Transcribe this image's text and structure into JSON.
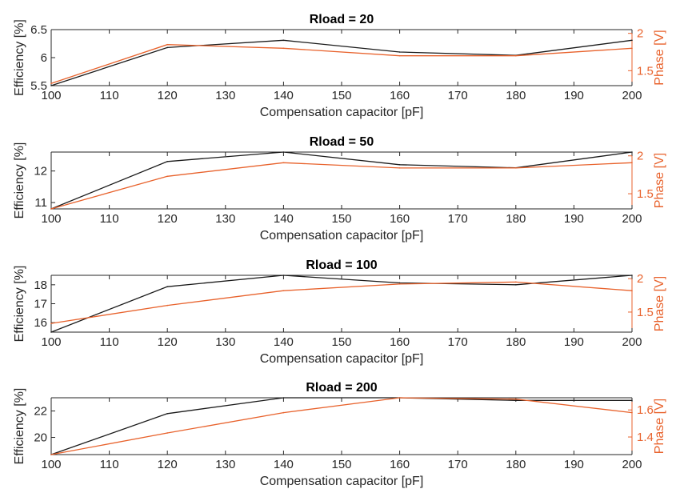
{
  "colors": {
    "efficiency": "#1a1a1a",
    "phase": "#e8622c",
    "axis": "#262626"
  },
  "chart_data": [
    {
      "type": "line",
      "title": "Rload = 20",
      "xlabel": "Compensation capacitor [pF]",
      "ylabel": "Efficiency [%]",
      "ylabel_right": "Phase [V]",
      "x": [
        100,
        120,
        140,
        160,
        180,
        200
      ],
      "xlim": [
        100,
        200
      ],
      "xticks": [
        "100",
        "110",
        "120",
        "130",
        "140",
        "150",
        "160",
        "170",
        "180",
        "190",
        "200"
      ],
      "ylim": [
        5.5,
        6.5
      ],
      "yticks": [
        "5.5",
        "6",
        "6.5"
      ],
      "ylim_right": [
        1.3,
        2.05
      ],
      "yticks_right": [
        "1.5",
        "2"
      ],
      "grid": false,
      "series": [
        {
          "axis": "left",
          "values": [
            5.5,
            6.18,
            6.31,
            6.1,
            6.04,
            6.31
          ]
        },
        {
          "axis": "right",
          "values": [
            1.33,
            1.85,
            1.8,
            1.7,
            1.7,
            1.8
          ]
        }
      ]
    },
    {
      "type": "line",
      "title": "Rload = 50",
      "xlabel": "Compensation capacitor [pF]",
      "ylabel": "Efficiency [%]",
      "ylabel_right": "Phase [V]",
      "x": [
        100,
        120,
        140,
        160,
        180,
        200
      ],
      "xlim": [
        100,
        200
      ],
      "xticks": [
        "100",
        "110",
        "120",
        "130",
        "140",
        "150",
        "160",
        "170",
        "180",
        "190",
        "200"
      ],
      "ylim": [
        10.8,
        12.6
      ],
      "yticks": [
        "11",
        "12"
      ],
      "ylim_right": [
        1.3,
        2.05
      ],
      "yticks_right": [
        "1.5",
        "2"
      ],
      "grid": false,
      "series": [
        {
          "axis": "left",
          "values": [
            10.8,
            12.3,
            12.6,
            12.2,
            12.1,
            12.6
          ]
        },
        {
          "axis": "right",
          "values": [
            1.3,
            1.73,
            1.91,
            1.84,
            1.84,
            1.91
          ]
        }
      ]
    },
    {
      "type": "line",
      "title": "Rload = 100",
      "xlabel": "Compensation capacitor [pF]",
      "ylabel": "Efficiency [%]",
      "ylabel_right": "Phase [V]",
      "x": [
        100,
        120,
        140,
        160,
        180,
        200
      ],
      "xlim": [
        100,
        200
      ],
      "xticks": [
        "100",
        "110",
        "120",
        "130",
        "140",
        "150",
        "160",
        "170",
        "180",
        "190",
        "200"
      ],
      "ylim": [
        15.5,
        18.5
      ],
      "yticks": [
        "16",
        "17",
        "18"
      ],
      "ylim_right": [
        1.2,
        2.05
      ],
      "yticks_right": [
        "1.5",
        "2"
      ],
      "grid": false,
      "series": [
        {
          "axis": "left",
          "values": [
            15.5,
            17.9,
            18.5,
            18.1,
            18.0,
            18.5
          ]
        },
        {
          "axis": "right",
          "values": [
            1.33,
            1.6,
            1.82,
            1.92,
            1.95,
            1.82
          ]
        }
      ]
    },
    {
      "type": "line",
      "title": "Rload = 200",
      "xlabel": "Compensation capacitor [pF]",
      "ylabel": "Efficiency [%]",
      "ylabel_right": "Phase [V]",
      "x": [
        100,
        120,
        140,
        160,
        180,
        200
      ],
      "xlim": [
        100,
        200
      ],
      "xticks": [
        "100",
        "110",
        "120",
        "130",
        "140",
        "150",
        "160",
        "170",
        "180",
        "190",
        "200"
      ],
      "ylim": [
        18.7,
        23.0
      ],
      "yticks": [
        "20",
        "22"
      ],
      "ylim_right": [
        1.27,
        1.69
      ],
      "yticks_right": [
        "1.4",
        "1.6"
      ],
      "grid": false,
      "series": [
        {
          "axis": "left",
          "values": [
            18.7,
            21.8,
            23.0,
            23.0,
            22.8,
            22.8
          ]
        },
        {
          "axis": "right",
          "values": [
            1.27,
            1.43,
            1.58,
            1.69,
            1.68,
            1.58
          ]
        }
      ]
    }
  ]
}
